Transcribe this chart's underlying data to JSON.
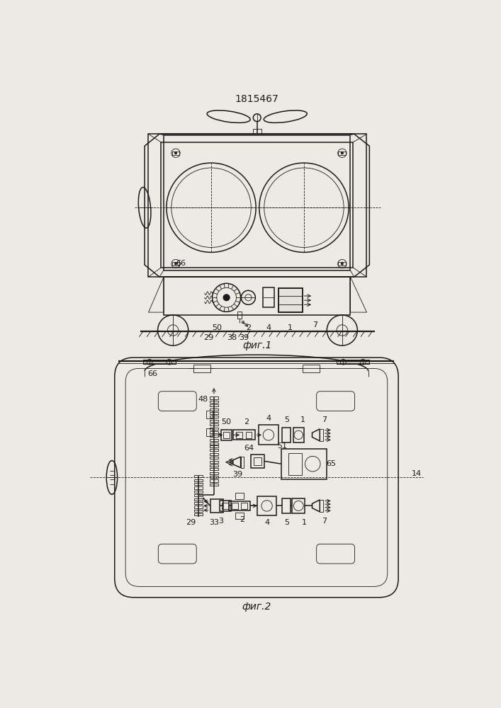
{
  "title": "1815467",
  "fig1_label": "фиг.1",
  "fig2_label": "фиг.2",
  "bg_color": "#ede9e3",
  "line_color": "#1a1a1a",
  "title_fontsize": 10,
  "label_fontsize": 8
}
